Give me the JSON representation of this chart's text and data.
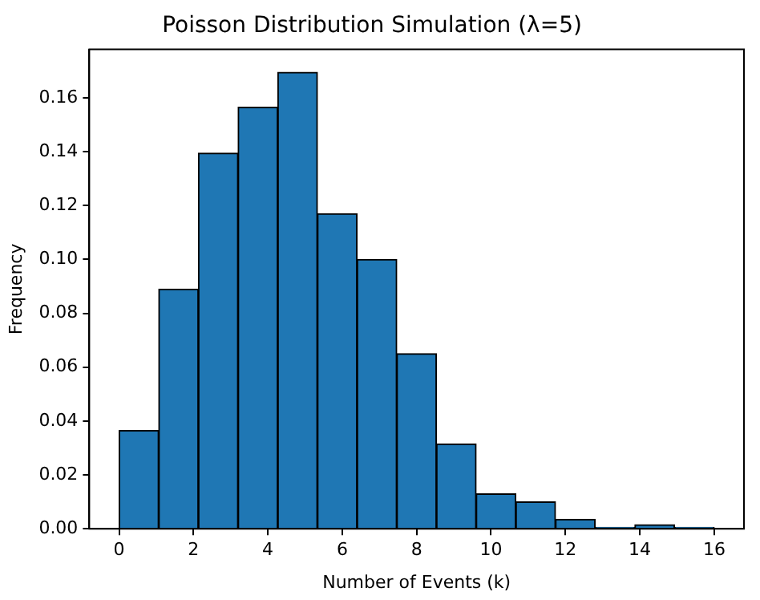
{
  "chart_data": {
    "type": "histogram",
    "title": "Poisson Distribution Simulation (λ=5)",
    "xlabel": "Number of Events (k)",
    "ylabel": "Frequency",
    "color": "#1f77b4",
    "bins": [
      0,
      1.067,
      2.133,
      3.2,
      4.267,
      5.333,
      6.4,
      7.467,
      8.533,
      9.6,
      10.667,
      11.733,
      12.8,
      13.867,
      14.933,
      16
    ],
    "values": [
      0.0365,
      0.089,
      0.1395,
      0.1565,
      0.1695,
      0.117,
      0.1,
      0.065,
      0.0315,
      0.013,
      0.01,
      0.0035,
      0.0005,
      0.0015,
      0.0005
    ],
    "xlim": [
      -0.8,
      16.8
    ],
    "xticks": [
      0,
      2,
      4,
      6,
      8,
      10,
      12,
      14,
      16
    ],
    "ylim": [
      0,
      0.178
    ],
    "yticks": [
      {
        "value": 0,
        "label": "0.00"
      },
      0.02,
      0.04,
      0.06,
      0.08,
      {
        "value": 0.1,
        "label": "0.10"
      },
      0.12,
      0.14,
      0.16
    ],
    "grid": false,
    "legend": false
  }
}
